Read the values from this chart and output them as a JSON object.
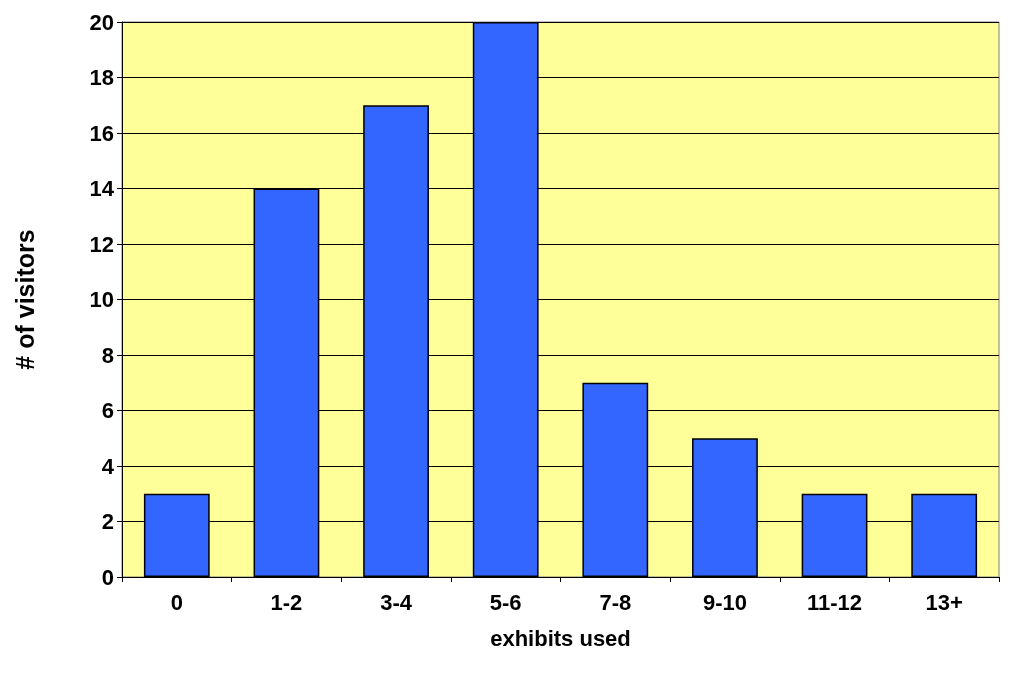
{
  "chart_data": {
    "type": "bar",
    "xlabel": "exhibits used",
    "ylabel": "# of visitors",
    "categories": [
      "0",
      "1-2",
      "3-4",
      "5-6",
      "7-8",
      "9-10",
      "11-12",
      "13+"
    ],
    "values": [
      3,
      14,
      17,
      20,
      7,
      5,
      3,
      3
    ],
    "color": "#3366ff",
    "ylim": [
      0,
      20
    ],
    "yticks": [
      0,
      2,
      4,
      6,
      8,
      10,
      12,
      14,
      16,
      18,
      20
    ],
    "grid": "y"
  }
}
